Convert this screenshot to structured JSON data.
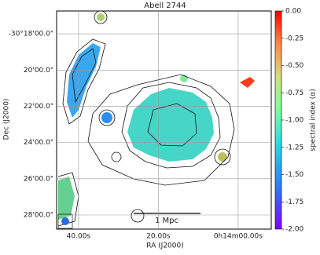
{
  "chart_data": {
    "type": "image",
    "title": "Abell 2744",
    "xlabel": "RA (J2000)",
    "ylabel": "Dec (J2000)",
    "xlim": [
      45.5,
      -8.3
    ],
    "xticks": [
      {
        "value": 40,
        "label": "40.00s"
      },
      {
        "value": 20,
        "label": "20.00s"
      },
      {
        "value": 0,
        "label": "0h14m00.00s"
      }
    ],
    "ylim": [
      28.78,
      16.74
    ],
    "yticks": [
      {
        "value": 18,
        "label": "-30°18'00.0\""
      },
      {
        "value": 20,
        "label": "20'00.0\""
      },
      {
        "value": 22,
        "label": "22'00.0\""
      },
      {
        "value": 24,
        "label": "24'00.0\""
      },
      {
        "value": 26,
        "label": "26'00.0\""
      },
      {
        "value": 28,
        "label": "28'00.0\""
      }
    ],
    "grid": true,
    "colorbar": {
      "label": "spectral index (α)",
      "lim": [
        -2.0,
        0.0
      ],
      "ticks": [
        {
          "value": 0,
          "label": "0.00"
        },
        {
          "value": -0.25,
          "label": "-0.25"
        },
        {
          "value": -0.5,
          "label": "-0.50"
        },
        {
          "value": -0.75,
          "label": "-0.75"
        },
        {
          "value": -1.0,
          "label": "-1.00"
        },
        {
          "value": -1.25,
          "label": "-1.25"
        },
        {
          "value": -1.5,
          "label": "-1.50"
        },
        {
          "value": -1.75,
          "label": "-1.75"
        },
        {
          "value": -2.0,
          "label": "-2.00"
        }
      ]
    },
    "annotations": [
      "1 Mpc"
    ]
  }
}
